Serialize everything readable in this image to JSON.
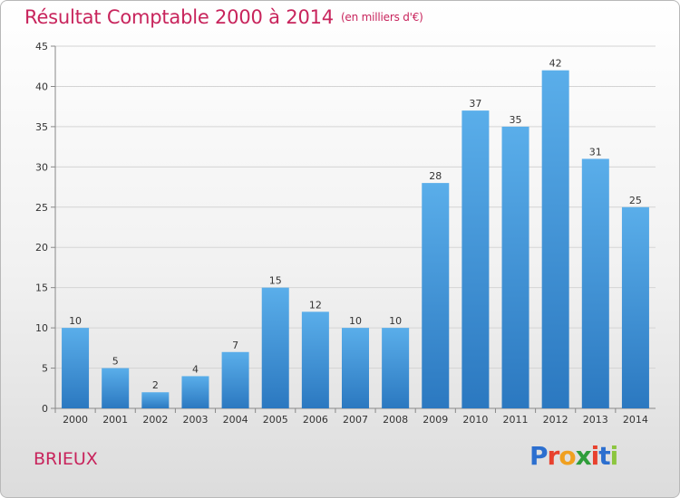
{
  "chart_data": {
    "type": "bar",
    "title": "Résultat Comptable 2000 à 2014",
    "subtitle": "(en milliers d'€)",
    "categories": [
      "2000",
      "2001",
      "2002",
      "2003",
      "2004",
      "2005",
      "2006",
      "2007",
      "2008",
      "2009",
      "2010",
      "2011",
      "2012",
      "2013",
      "2014"
    ],
    "values": [
      10,
      5,
      2,
      4,
      7,
      15,
      12,
      10,
      10,
      28,
      37,
      35,
      42,
      31,
      25
    ],
    "ylim": [
      0,
      45
    ],
    "yticks": [
      0,
      5,
      10,
      15,
      20,
      25,
      30,
      35,
      40,
      45
    ],
    "grid": true,
    "bar_color": "#3a8fd6"
  },
  "footer": {
    "place": "BRIEUX",
    "logo_letters": [
      "P",
      "r",
      "o",
      "x",
      "i",
      "t",
      "i"
    ],
    "logo_colors": [
      "#2c6fcf",
      "#e8412e",
      "#f0a020",
      "#2f9d3a",
      "#e8412e",
      "#2c6fcf",
      "#8cc63f"
    ]
  }
}
